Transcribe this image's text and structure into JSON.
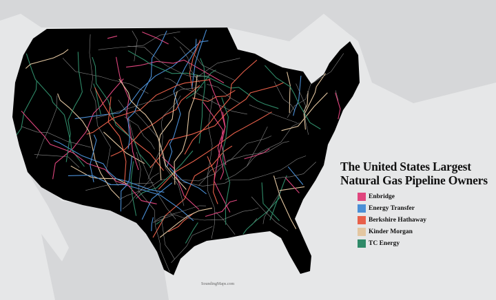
{
  "title_line1": "The United States Largest",
  "title_line2": "Natural Gas Pipeline Owners",
  "legend": [
    {
      "label": "Enbridge",
      "color": "#e0467e"
    },
    {
      "label": "Energy Transfer",
      "color": "#4a8fd6"
    },
    {
      "label": "Berkshire Hathaway",
      "color": "#e8604a"
    },
    {
      "label": "Kinder Morgan",
      "color": "#e3c6a0"
    },
    {
      "label": "TC Energy",
      "color": "#2f8a68"
    }
  ],
  "watermark": "SoundingMaps.com",
  "colors": {
    "land": "#000000",
    "background": "#e6e7e8",
    "other_pipelines": "#8a8a8a"
  }
}
